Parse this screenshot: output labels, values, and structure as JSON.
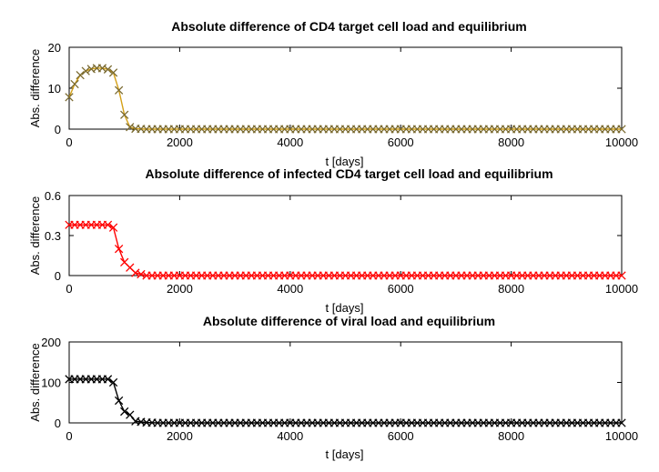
{
  "chart_data": [
    {
      "type": "line",
      "title": "Absolute difference of CD4 target cell load and equilibrium",
      "xlabel": "t [days]",
      "ylabel": "Abs. difference",
      "xlim": [
        0,
        10000
      ],
      "ylim": [
        0,
        20
      ],
      "xticks": [
        0,
        2000,
        4000,
        6000,
        8000,
        10000
      ],
      "yticks": [
        0,
        10,
        20
      ],
      "marker": "x",
      "color": "#d4a017",
      "marker_color": "#7a6a30",
      "x": [
        0,
        100,
        200,
        300,
        400,
        500,
        600,
        700,
        800,
        900,
        1000,
        1100,
        1200,
        1400,
        1600,
        2000,
        3000,
        4000,
        5000,
        6000,
        7000,
        8000,
        9000,
        10000
      ],
      "y": [
        7.8,
        11,
        13.2,
        14.2,
        14.7,
        14.9,
        14.9,
        14.6,
        13.8,
        9.5,
        3.5,
        0.5,
        0.1,
        0,
        0,
        0,
        0,
        0,
        0,
        0,
        0,
        0,
        0,
        0
      ]
    },
    {
      "type": "line",
      "title": "Absolute difference of infected CD4 target cell load and equilibrium",
      "xlabel": "t [days]",
      "ylabel": "Abs. difference",
      "xlim": [
        0,
        10000
      ],
      "ylim": [
        0,
        0.6
      ],
      "xticks": [
        0,
        2000,
        4000,
        6000,
        8000,
        10000
      ],
      "yticks": [
        0,
        0.3,
        0.6
      ],
      "marker": "x",
      "color": "#ff0000",
      "marker_color": "#ff0000",
      "x": [
        0,
        100,
        200,
        300,
        400,
        500,
        600,
        700,
        800,
        900,
        1000,
        1100,
        1200,
        1400,
        1600,
        2000,
        3000,
        4000,
        5000,
        6000,
        7000,
        8000,
        9000,
        10000
      ],
      "y": [
        0.38,
        0.38,
        0.38,
        0.38,
        0.38,
        0.38,
        0.38,
        0.38,
        0.36,
        0.2,
        0.1,
        0.06,
        0.02,
        0,
        0,
        0,
        0,
        0,
        0,
        0,
        0,
        0,
        0,
        0
      ]
    },
    {
      "type": "line",
      "title": "Absolute difference of viral load and equilibrium",
      "xlabel": "t [days]",
      "ylabel": "Abs. difference",
      "xlim": [
        0,
        10000
      ],
      "ylim": [
        0,
        200
      ],
      "xticks": [
        0,
        2000,
        4000,
        6000,
        8000,
        10000
      ],
      "yticks": [
        0,
        100,
        200
      ],
      "marker": "x",
      "color": "#000000",
      "marker_color": "#000000",
      "x": [
        0,
        100,
        200,
        300,
        400,
        500,
        600,
        700,
        800,
        900,
        1000,
        1100,
        1200,
        1400,
        1600,
        2000,
        3000,
        4000,
        5000,
        6000,
        7000,
        8000,
        9000,
        10000
      ],
      "y": [
        108,
        108,
        108,
        108,
        108,
        108,
        108,
        108,
        100,
        55,
        28,
        20,
        4,
        1,
        0,
        0,
        0,
        0,
        0,
        0,
        0,
        0,
        0,
        0
      ]
    }
  ]
}
